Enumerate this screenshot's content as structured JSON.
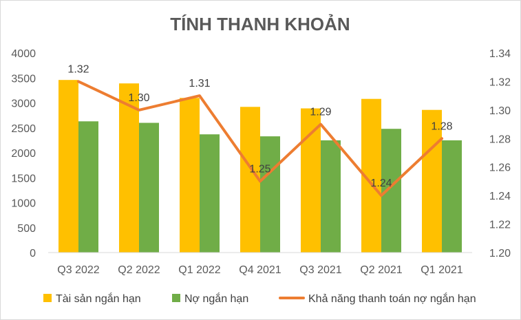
{
  "chart_data": {
    "type": "bar",
    "title": "TÍNH THANH KHOẢN",
    "categories": [
      "Q3 2022",
      "Q2 2022",
      "Q1 2022",
      "Q4 2021",
      "Q3 2021",
      "Q2 2021",
      "Q1 2021"
    ],
    "series": [
      {
        "name": "Tài sản ngắn hạn",
        "type": "bar",
        "axis": "left",
        "color": "#FFC000",
        "values": [
          3460,
          3390,
          3100,
          2920,
          2890,
          3080,
          2860
        ]
      },
      {
        "name": "Nợ ngắn hạn",
        "type": "bar",
        "axis": "left",
        "color": "#70AD47",
        "values": [
          2630,
          2600,
          2370,
          2330,
          2250,
          2480,
          2250
        ]
      },
      {
        "name": "Khả năng thanh toán nợ ngắn hạn",
        "type": "line",
        "axis": "right",
        "color": "#ED7D31",
        "values": [
          1.32,
          1.3,
          1.31,
          1.25,
          1.29,
          1.24,
          1.28
        ],
        "labels": [
          "1.32",
          "1.30",
          "1.31",
          "1.25",
          "1.29",
          "1.24",
          "1.28"
        ]
      }
    ],
    "y_left": {
      "min": 0,
      "max": 4000,
      "ticks": [
        "0",
        "500",
        "1000",
        "1500",
        "2000",
        "2500",
        "3000",
        "3500",
        "4000"
      ]
    },
    "y_right": {
      "min": 1.2,
      "max": 1.34,
      "ticks": [
        "1.20",
        "1.22",
        "1.24",
        "1.26",
        "1.28",
        "1.30",
        "1.32",
        "1.34"
      ]
    },
    "grid": false,
    "legend_position": "bottom"
  }
}
